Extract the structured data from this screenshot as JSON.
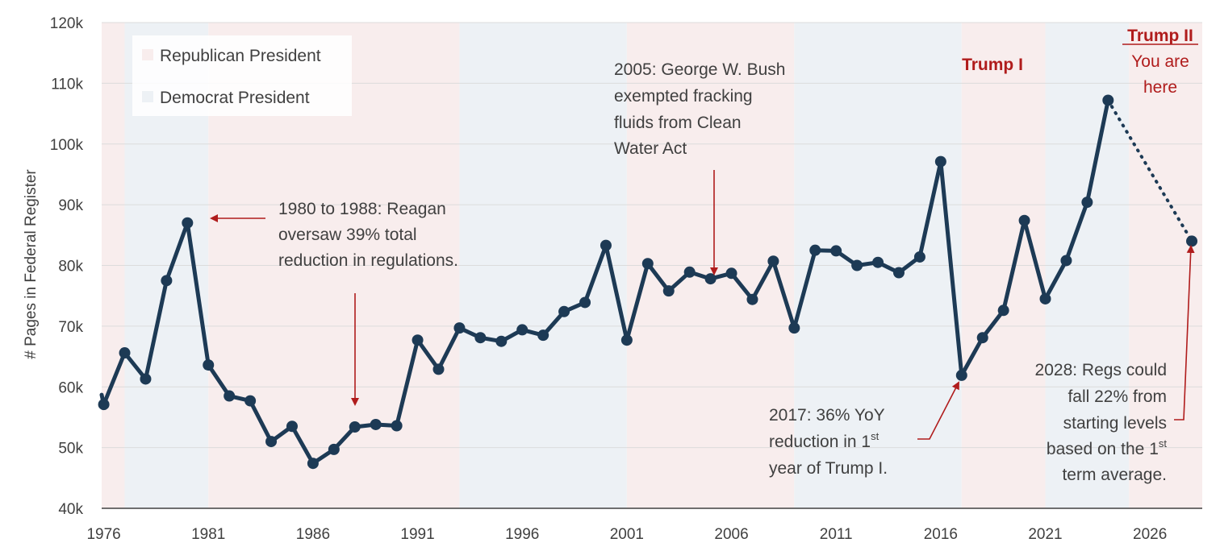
{
  "chart_data": {
    "type": "line",
    "ylabel": "# Pages in Federal Register",
    "ylim": [
      40000,
      120000
    ],
    "xlim": [
      1975.9,
      2028.5
    ],
    "y_ticks": [
      {
        "value": 40000,
        "label": "40k"
      },
      {
        "value": 50000,
        "label": "50k"
      },
      {
        "value": 60000,
        "label": "60k"
      },
      {
        "value": 70000,
        "label": "70k"
      },
      {
        "value": 80000,
        "label": "80k"
      },
      {
        "value": 90000,
        "label": "90k"
      },
      {
        "value": 100000,
        "label": "100k"
      },
      {
        "value": 110000,
        "label": "110k"
      },
      {
        "value": 120000,
        "label": "120k"
      }
    ],
    "x_ticks": [
      {
        "value": 1976,
        "label": "1976"
      },
      {
        "value": 1981,
        "label": "1981"
      },
      {
        "value": 1986,
        "label": "1986"
      },
      {
        "value": 1991,
        "label": "1991"
      },
      {
        "value": 1996,
        "label": "1996"
      },
      {
        "value": 2001,
        "label": "2001"
      },
      {
        "value": 2006,
        "label": "2006"
      },
      {
        "value": 2011,
        "label": "2011"
      },
      {
        "value": 2016,
        "label": "2016"
      },
      {
        "value": 2021,
        "label": "2021"
      },
      {
        "value": 2026,
        "label": "2026"
      }
    ],
    "grid": "horizontal",
    "series": [
      {
        "x": [
          1976,
          1977,
          1978,
          1979,
          1980,
          1981,
          1982,
          1983,
          1984,
          1985,
          1986,
          1987,
          1988,
          1989,
          1990,
          1991,
          1992,
          1993,
          1994,
          1995,
          1996,
          1997,
          1998,
          1999,
          2000,
          2001,
          2002,
          2003,
          2004,
          2005,
          2006,
          2007,
          2008,
          2009,
          2010,
          2011,
          2012,
          2013,
          2014,
          2015,
          2016,
          2017,
          2018,
          2019,
          2020,
          2021,
          2022,
          2023,
          2024
        ],
        "values": [
          57100,
          65600,
          61300,
          77500,
          87000,
          63600,
          58500,
          57700,
          51000,
          53500,
          47400,
          49700,
          53400,
          53800,
          53600,
          67700,
          62900,
          69700,
          68100,
          67500,
          69400,
          68500,
          72400,
          73900,
          83300,
          67700,
          80300,
          75800,
          78900,
          77800,
          78700,
          74400,
          80700,
          69700,
          82500,
          82400,
          80000,
          80500,
          78800,
          81400,
          97100,
          61900,
          68100,
          72600,
          87400,
          74500,
          80800,
          90400,
          107200
        ],
        "color": "#1d3a55"
      },
      {
        "x": [
          2024,
          2028
        ],
        "values": [
          107200,
          84000
        ],
        "style": "dotted",
        "color": "#1d3a55"
      }
    ],
    "regions": [
      {
        "start": 1975.9,
        "end": 1977.0,
        "party": "Republican"
      },
      {
        "start": 1977.0,
        "end": 1981.0,
        "party": "Democrat"
      },
      {
        "start": 1981.0,
        "end": 1993.0,
        "party": "Republican"
      },
      {
        "start": 1993.0,
        "end": 2001.0,
        "party": "Democrat"
      },
      {
        "start": 2001.0,
        "end": 2009.0,
        "party": "Republican"
      },
      {
        "start": 2009.0,
        "end": 2017.0,
        "party": "Democrat"
      },
      {
        "start": 2017.0,
        "end": 2021.0,
        "party": "Republican"
      },
      {
        "start": 2021.0,
        "end": 2025.0,
        "party": "Democrat"
      },
      {
        "start": 2025.0,
        "end": 2028.5,
        "party": "Republican"
      }
    ],
    "legend": {
      "placement": "top-left",
      "items": [
        {
          "label": "Republican President",
          "color": "#f8eded"
        },
        {
          "label": "Democrat President",
          "color": "#edf1f5"
        }
      ]
    },
    "colors": {
      "line": "#1d3a55",
      "arrow": "#b01c1c",
      "republican": "#f8eded",
      "democrat": "#edf1f5",
      "grid": "#dcdcdc",
      "axis": "#404040"
    },
    "annotations": {
      "reagan": [
        "1980 to 1988: Reagan",
        "oversaw 39% total",
        "reduction in regulations."
      ],
      "bush": [
        "2005: George W. Bush",
        "exempted fracking",
        "fluids from Clean",
        "Water Act"
      ],
      "trump1_label": "Trump I",
      "trump2_title": "Trump II",
      "trump2_lines": [
        "You are",
        "here"
      ],
      "y2017": {
        "line1": "2017: 36% YoY",
        "line2_pre": "reduction in 1",
        "line2_sup": "st",
        "line3": "year of Trump I."
      },
      "y2028": {
        "line1": "2028: Regs could",
        "line2": "fall 22% from",
        "line3": "starting levels",
        "line4_pre": "based on the 1",
        "line4_sup": "st",
        "line5": "term average."
      }
    }
  }
}
